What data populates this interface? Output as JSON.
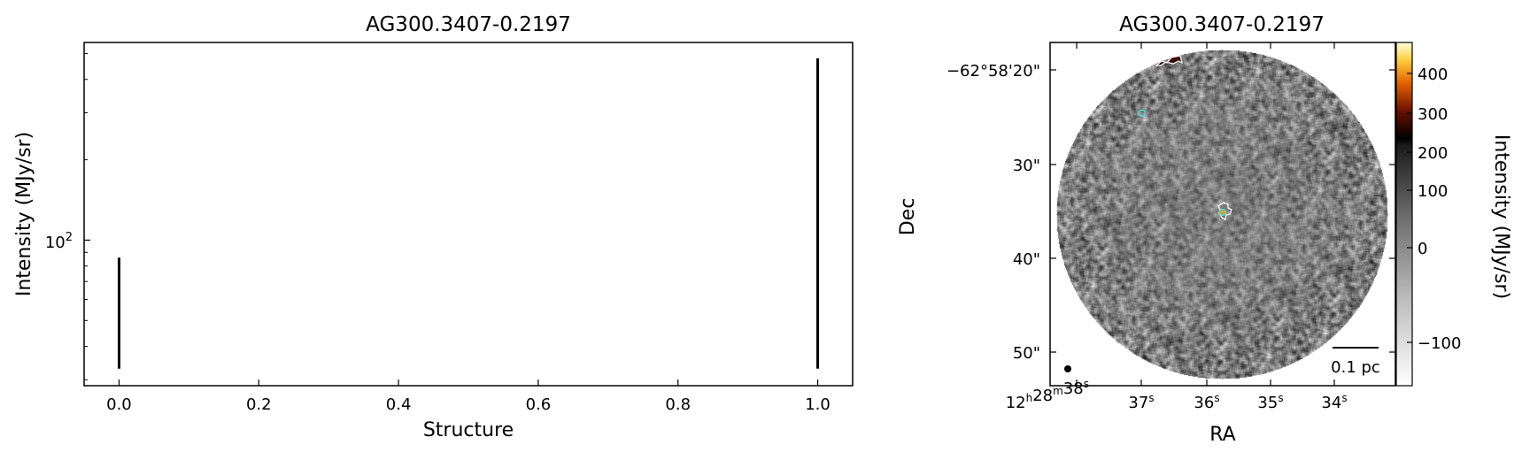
{
  "chart_data": [
    {
      "type": "line",
      "title": "AG300.3407-0.2197",
      "xlabel": "Structure",
      "ylabel": "Intensity (MJy/sr)",
      "xlim": [
        -0.05,
        1.05
      ],
      "ylim": [
        28.5,
        550
      ],
      "yscale": "log",
      "grid": false,
      "x_ticks": [
        "0.0",
        "0.2",
        "0.4",
        "0.6",
        "0.8",
        "1.0"
      ],
      "x_tick_values": [
        0,
        0.2,
        0.4,
        0.6,
        0.8,
        1.0
      ],
      "y_tick_label_base": "10",
      "y_tick_label_exp": "2",
      "y_tick_value": 100,
      "y_minor_ticks": [
        30,
        40,
        50,
        60,
        70,
        80,
        90,
        200,
        300,
        400,
        500
      ],
      "segments": [
        {
          "x": 0,
          "y_low": 33,
          "y_high": 86
        },
        {
          "x": 1,
          "y_low": 33,
          "y_high": 480
        }
      ],
      "line_color": "#000000"
    },
    {
      "type": "heatmap",
      "title": "AG300.3407-0.2197",
      "xlabel": "RA",
      "ylabel": "Dec",
      "colorbar_label": "Intensity (MJy/sr)",
      "colormap": "gray_r to afmhot",
      "colorbar_ticks": [
        {
          "label": "400",
          "value": 400
        },
        {
          "label": "300",
          "value": 300
        },
        {
          "label": "200",
          "value": 200
        },
        {
          "label": "100",
          "value": 100
        },
        {
          "label": "0",
          "value": 0
        },
        {
          "label": "−100",
          "value": -100
        }
      ],
      "dec_ticks": [
        "−62°58'20\"",
        "30\"",
        "40\"",
        "50\""
      ],
      "ra_ticks": [
        {
          "h": "12",
          "m": "28",
          "s": "38"
        },
        {
          "s": "37"
        },
        {
          "s": "36"
        },
        {
          "s": "35"
        },
        {
          "s": "34"
        }
      ],
      "ra_units": {
        "h": "h",
        "m": "m",
        "s": "s"
      },
      "scalebar_label": "0.1 pc",
      "markers_color": "#40e0d0",
      "contour_color": "#ffffff"
    }
  ]
}
